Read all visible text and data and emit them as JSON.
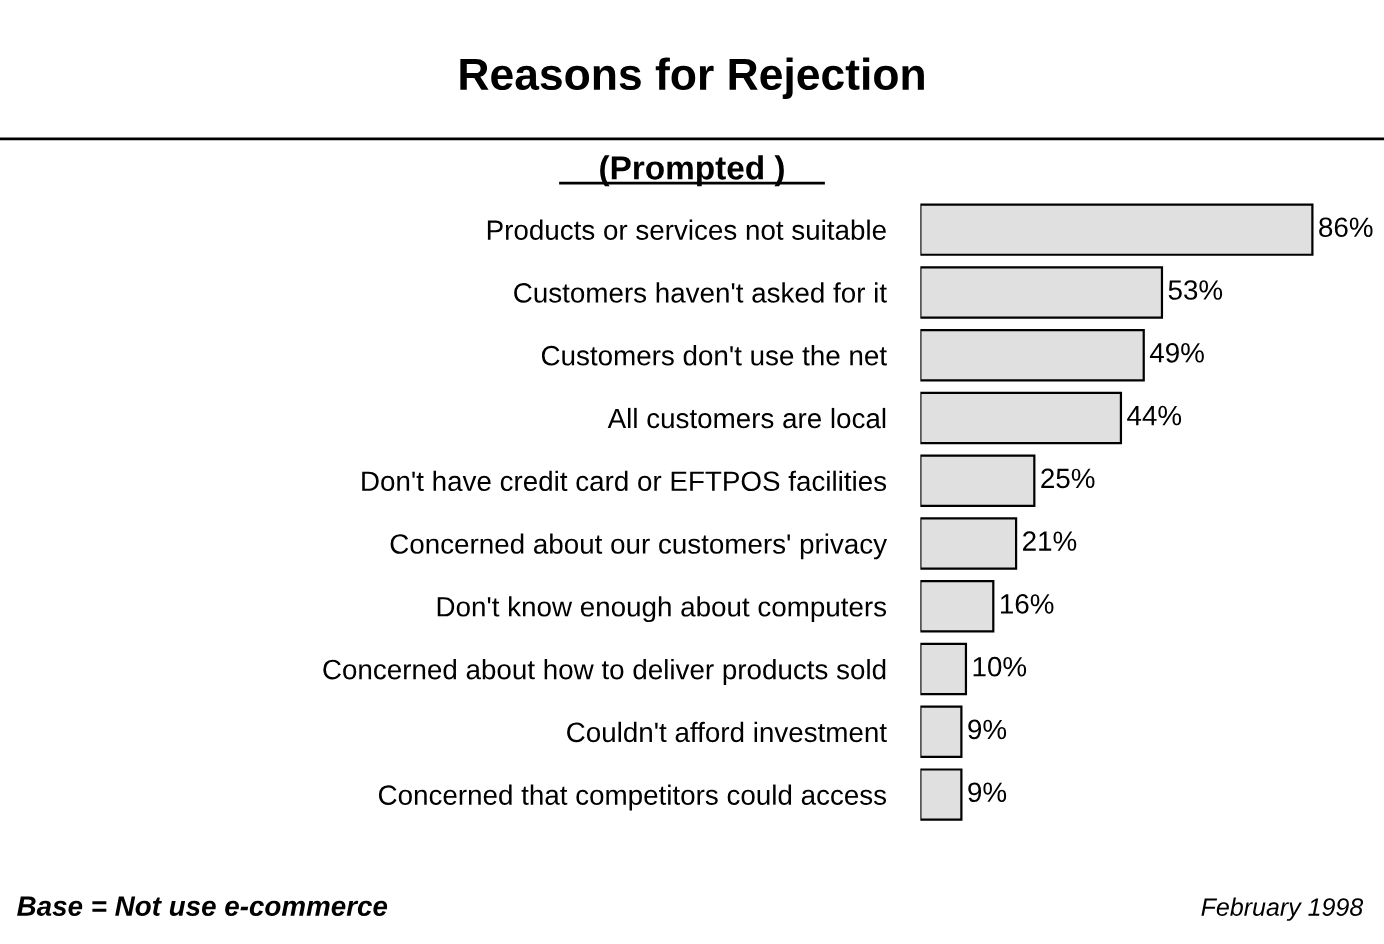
{
  "chart_data": {
    "type": "bar",
    "orientation": "horizontal",
    "title": "Reasons for Rejection",
    "subtitle": "(Prompted )",
    "categories": [
      "Products or services not suitable",
      "Customers haven't asked for it",
      "Customers don't use the net",
      "All customers are local",
      "Don't have credit card or EFTPOS facilities",
      "Concerned about our customers' privacy",
      "Don't know enough about computers",
      "Concerned about how to deliver products sold",
      "Couldn't afford investment",
      "Concerned that competitors could access"
    ],
    "values": [
      86,
      53,
      49,
      44,
      25,
      21,
      16,
      10,
      9,
      9
    ],
    "value_labels": [
      "86%",
      "53%",
      "49%",
      "44%",
      "25%",
      "21%",
      "16%",
      "10%",
      "9%",
      "9%"
    ],
    "color": "#e0e0e0",
    "annotations": [
      "Base = Not use e-commerce",
      "February 1998"
    ]
  }
}
